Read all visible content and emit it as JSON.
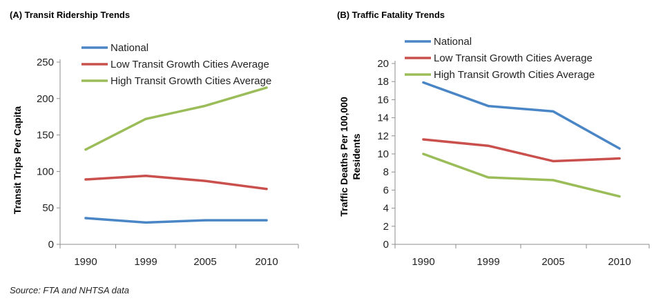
{
  "colors": {
    "national": "#4a86c6",
    "low": "#c9504d",
    "high": "#9bbd59"
  },
  "chart_data": [
    {
      "type": "line",
      "title": "(A)  Transit Ridership Trends",
      "ylabel": "Transit Trips Per Capita",
      "xlabel": "",
      "categories": [
        "1990",
        "1999",
        "2005",
        "2010"
      ],
      "ylim": [
        0,
        250
      ],
      "yticks": [
        0,
        50,
        100,
        150,
        200,
        250
      ],
      "grid": false,
      "legend_position": "top",
      "series": [
        {
          "name": "National",
          "values": [
            36,
            30,
            33,
            33
          ]
        },
        {
          "name": "Low Transit Growth Cities Average",
          "values": [
            89,
            94,
            87,
            76
          ]
        },
        {
          "name": "High Transit Growth Cities Average",
          "values": [
            130,
            172,
            190,
            215
          ]
        }
      ]
    },
    {
      "type": "line",
      "title": "(B)  Traffic Fatality Trends",
      "ylabel": "Traffic Deaths Per 100,000 Residents",
      "xlabel": "",
      "categories": [
        "1990",
        "1999",
        "2005",
        "2010"
      ],
      "ylim": [
        0,
        20
      ],
      "yticks": [
        0,
        2,
        4,
        6,
        8,
        10,
        12,
        14,
        16,
        18,
        20
      ],
      "grid": false,
      "legend_position": "top",
      "series": [
        {
          "name": "National",
          "values": [
            17.9,
            15.3,
            14.7,
            10.6
          ]
        },
        {
          "name": "Low Transit Growth Cities Average",
          "values": [
            11.6,
            10.9,
            9.2,
            9.5
          ]
        },
        {
          "name": "High Transit Growth Cities Average",
          "values": [
            10.0,
            7.4,
            7.1,
            5.3
          ]
        }
      ]
    }
  ],
  "source": "Source: FTA and NHTSA data"
}
